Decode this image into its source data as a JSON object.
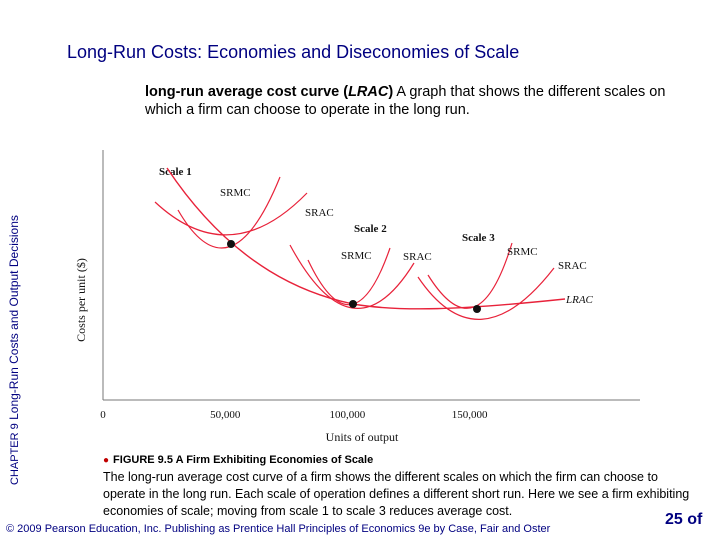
{
  "slide": {
    "title": "Long-Run Costs: Economies and Diseconomies of Scale",
    "definition_term": "long-run average cost curve (",
    "definition_abbr": "LRAC",
    "definition_close": ")",
    "definition_text": "A graph that shows the different scales on which a firm can choose to operate in the long run.",
    "side_label_chapter": "CHAPTER 9",
    "side_label_text": "Long-Run Costs and Output Decisions",
    "caption_bullet": "●",
    "caption_head": "FIGURE 9.5 A Firm Exhibiting Economies of Scale",
    "caption_text": "The long-run average cost curve of a firm shows the different scales on which the firm can choose to operate in the long run. Each scale of operation defines a different short run. Here we see a firm exhibiting economies of scale; moving from scale 1 to scale 3 reduces average cost.",
    "footer": "© 2009 Pearson Education, Inc. Publishing as Prentice Hall Principles of Economics 9e by Case, Fair and Oster",
    "page_number": "25 of"
  },
  "colors": {
    "curve": "#e8223a",
    "axis": "#777777",
    "title": "#000080"
  },
  "chart_data": {
    "type": "line",
    "xlabel": "Units of output",
    "ylabel": "Costs per unit ($)",
    "x_ticks": [
      {
        "value": 0,
        "label": "0"
      },
      {
        "value": 50000,
        "label": "50,000"
      },
      {
        "value": 100000,
        "label": "100,000"
      },
      {
        "value": 150000,
        "label": "150,000"
      }
    ],
    "xlim": [
      0,
      165000
    ],
    "y_ticks_shown": false,
    "grid": false,
    "scales": [
      {
        "name": "Scale 1",
        "srmc_label": "SRMC",
        "srac_label": "SRAC",
        "min_point": {
          "x": 50000
        }
      },
      {
        "name": "Scale 2",
        "srmc_label": "SRMC",
        "srac_label": "SRAC",
        "min_point": {
          "x": 100000
        }
      },
      {
        "name": "Scale 3",
        "srmc_label": "SRMC",
        "srac_label": "SRAC",
        "min_point": {
          "x": 150000
        }
      }
    ],
    "lrac_label": "LRAC"
  }
}
